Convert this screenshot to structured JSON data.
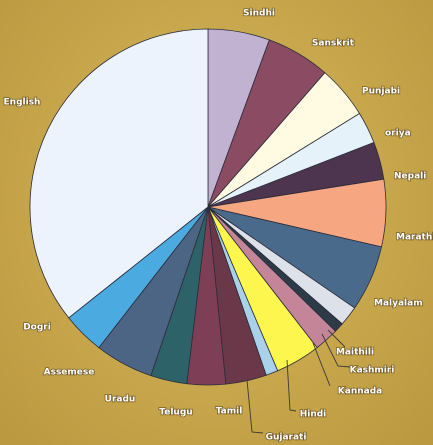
{
  "chart_data": {
    "type": "pie",
    "title": "",
    "start_angle_deg": 0,
    "direction": "clockwise",
    "slices": [
      {
        "label": "Sindhi",
        "value": 5.6,
        "color": "#c0b2d0"
      },
      {
        "label": "Sanskrit",
        "value": 5.8,
        "color": "#8a4b63"
      },
      {
        "label": "Punjabi",
        "value": 4.8,
        "color": "#fffbe3"
      },
      {
        "label": "oriya",
        "value": 2.9,
        "color": "#e5f2f9"
      },
      {
        "label": "Nepali",
        "value": 3.4,
        "color": "#4d3550"
      },
      {
        "label": "Marathi",
        "value": 6.1,
        "color": "#f6a782"
      },
      {
        "label": "Malyalam",
        "value": 6.0,
        "color": "#4a6a8c"
      },
      {
        "label": "Maithili",
        "value": 1.8,
        "color": "#dce1ea"
      },
      {
        "label": "Kashmiri",
        "value": 0.9,
        "color": "#2d3a47"
      },
      {
        "label": "Kannada",
        "value": 2.2,
        "color": "#c58599"
      },
      {
        "label": "Hindi",
        "value": 4.1,
        "color": "#fcf64f"
      },
      {
        "label": "Gujarati",
        "value": 1.1,
        "color": "#a9d2ea"
      },
      {
        "label": "Tamil",
        "value": 3.7,
        "color": "#6a3848"
      },
      {
        "label": "Telugu",
        "value": 3.5,
        "color": "#7e3f56"
      },
      {
        "label": "Uradu",
        "value": 3.3,
        "color": "#2c6268"
      },
      {
        "label": "Assemese",
        "value": 5.3,
        "color": "#4c6584"
      },
      {
        "label": "Dogri",
        "value": 3.8,
        "color": "#4baae0"
      },
      {
        "label": "English",
        "value": 35.7,
        "color": "#edf3fd"
      }
    ]
  }
}
